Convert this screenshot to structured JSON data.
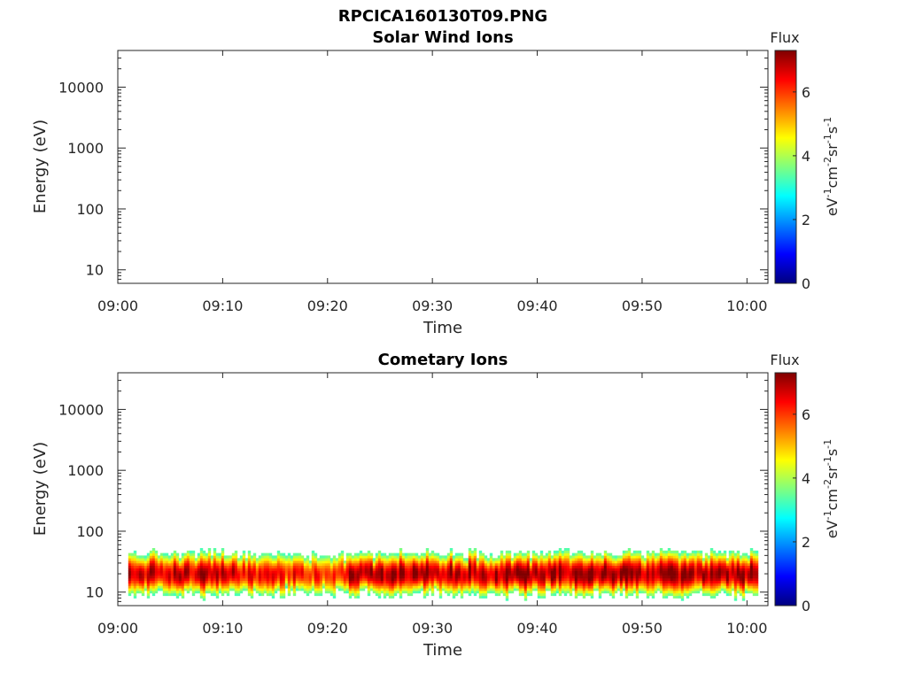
{
  "figure_title": "RPCICA160130T09.PNG",
  "colormap": [
    "#00007f",
    "#0000ff",
    "#007fff",
    "#00ffff",
    "#7fff7f",
    "#ffff00",
    "#ff7f00",
    "#ff0000",
    "#7f0000"
  ],
  "chart_data": [
    {
      "type": "heatmap",
      "title": "Solar Wind Ions",
      "xlabel": "Time",
      "ylabel": "Energy (eV)",
      "x_ticks": [
        "09:00",
        "09:10",
        "09:20",
        "09:30",
        "09:40",
        "09:50",
        "10:00"
      ],
      "y_scale": "log",
      "y_ticks": [
        10,
        100,
        1000,
        10000
      ],
      "y_tick_labels": [
        "10",
        "100",
        "1000",
        "10000"
      ],
      "ylim": [
        6,
        40000
      ],
      "colorbar": {
        "label": "Flux",
        "units": "eV-1cm-2sr-1s-1",
        "range": [
          0,
          7.3
        ],
        "ticks": [
          0,
          2,
          4,
          6
        ],
        "tick_labels": [
          "0",
          "2",
          "4",
          "6"
        ]
      },
      "data": "no flux visible"
    },
    {
      "type": "heatmap",
      "title": "Cometary Ions",
      "xlabel": "Time",
      "ylabel": "Energy (eV)",
      "x_ticks": [
        "09:00",
        "09:10",
        "09:20",
        "09:30",
        "09:40",
        "09:50",
        "10:00"
      ],
      "y_scale": "log",
      "y_ticks": [
        10,
        100,
        1000,
        10000
      ],
      "y_tick_labels": [
        "10",
        "100",
        "1000",
        "10000"
      ],
      "ylim": [
        6,
        40000
      ],
      "colorbar": {
        "label": "Flux",
        "units": "eV-1cm-2sr-1s-1",
        "range": [
          0,
          7.3
        ],
        "ticks": [
          0,
          2,
          4,
          6
        ],
        "tick_labels": [
          "0",
          "2",
          "4",
          "6"
        ]
      },
      "energy_range_ev": [
        6,
        85
      ],
      "time_range_min": [
        1,
        61
      ],
      "peak_energy_ev": 20,
      "peak_flux": 7,
      "segments": [
        {
          "start_min": 1,
          "end_min": 8,
          "peak_flux": 6.8
        },
        {
          "start_min": 8,
          "end_min": 11,
          "peak_flux": 7.0
        },
        {
          "start_min": 11,
          "end_min": 22,
          "peak_flux": 6.3
        },
        {
          "start_min": 22,
          "end_min": 53,
          "peak_flux": 7.1
        },
        {
          "start_min": 53,
          "end_min": 56,
          "peak_flux": 6.9
        },
        {
          "start_min": 56,
          "end_min": 61,
          "peak_flux": 7.1
        }
      ]
    }
  ]
}
